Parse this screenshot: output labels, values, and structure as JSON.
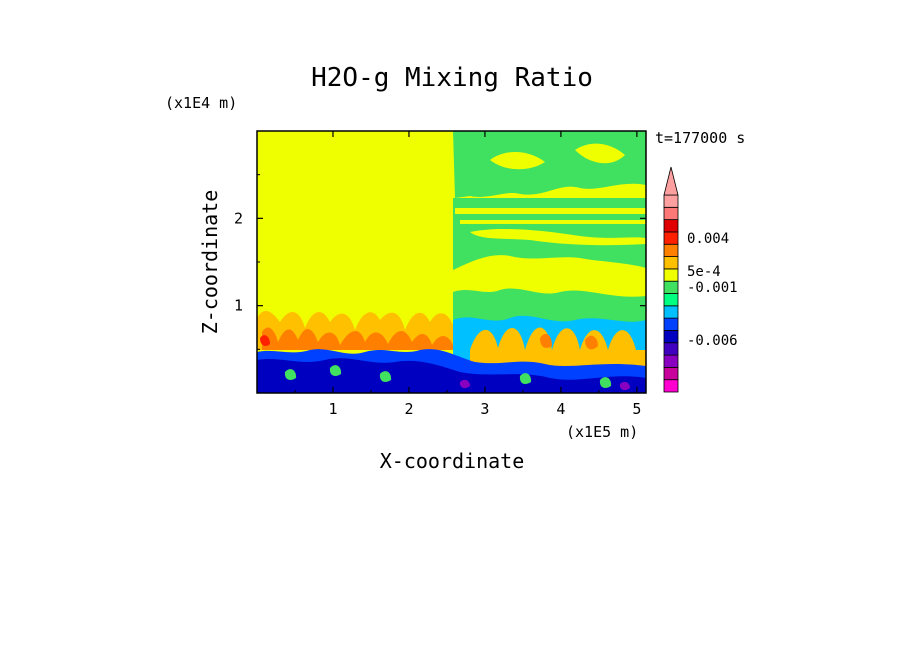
{
  "chart_data": {
    "type": "heatmap",
    "title": "H2O-g Mixing Ratio",
    "time_label": "t=177000 s",
    "xlabel": "X-coordinate",
    "ylabel": "Z-coordinate",
    "x_unit": "(x1E5 m)",
    "y_unit": "(x1E4 m)",
    "xlim": [
      0,
      5.12
    ],
    "ylim": [
      0,
      3.0
    ],
    "x_ticks": [
      "1",
      "2",
      "3",
      "4",
      "5"
    ],
    "x_tick_values": [
      1,
      2,
      3,
      4,
      5
    ],
    "y_ticks": [
      "1",
      "2"
    ],
    "y_tick_values": [
      1,
      2
    ],
    "colorbar": {
      "colors": [
        "#ff00d0",
        "#c8009c",
        "#8a00c0",
        "#4000c0",
        "#0000c0",
        "#0040ff",
        "#00c0ff",
        "#00ff80",
        "#40e060",
        "#f0ff00",
        "#ffc000",
        "#ff8000",
        "#ff2000",
        "#e00000",
        "#ff7878",
        "#ffa0a0"
      ],
      "labels": [
        "0.004",
        "5e-4",
        "-0.001",
        "-0.006"
      ]
    },
    "regions": [
      {
        "x": [
          0,
          2.55
        ],
        "z": [
          1.0,
          3.0
        ],
        "category": "yellow"
      },
      {
        "x": [
          2.55,
          5.12
        ],
        "z": [
          1.4,
          3.0
        ],
        "category": "yellow with green bands"
      },
      {
        "x": [
          0,
          2.55
        ],
        "z": [
          0.5,
          1.0
        ],
        "category": "orange / yellow plumes"
      },
      {
        "x": [
          2.55,
          5.12
        ],
        "z": [
          0.5,
          1.4
        ],
        "category": "yellow / cyan / orange plumes"
      },
      {
        "x": [
          0,
          5.12
        ],
        "z": [
          0,
          0.5
        ],
        "category": "blue / dark blue"
      }
    ]
  }
}
